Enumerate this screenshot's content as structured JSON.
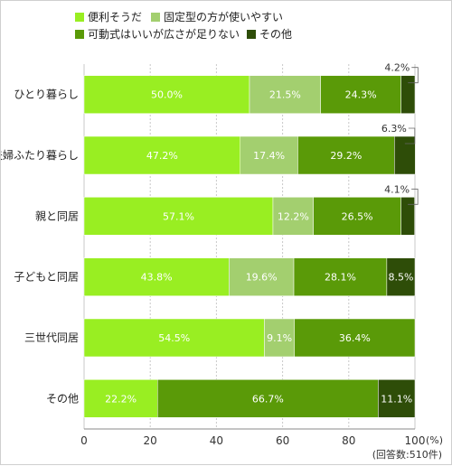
{
  "chart_data": {
    "type": "bar",
    "orientation": "horizontal",
    "stacked": true,
    "categories": [
      "ひとり暮らし",
      "夫婦ふたり暮らし",
      "親と同居",
      "子どもと同居",
      "三世代同居",
      "その他"
    ],
    "series": [
      {
        "name": "便利そうだ",
        "color": "#99ee22",
        "values": [
          50.0,
          47.2,
          57.1,
          43.8,
          54.5,
          22.2
        ],
        "labels": [
          "50.0%",
          "47.2%",
          "57.1%",
          "43.8%",
          "54.5%",
          "22.2%"
        ]
      },
      {
        "name": "固定型の方が使いやすい",
        "color": "#a3cf6f",
        "values": [
          21.5,
          17.4,
          12.2,
          19.6,
          9.1,
          0
        ],
        "labels": [
          "21.5%",
          "17.4%",
          "12.2%",
          "19.6%",
          "9.1%",
          ""
        ]
      },
      {
        "name": "可動式はいいが広さが足りない",
        "color": "#5a9a08",
        "values": [
          24.3,
          29.2,
          26.5,
          28.1,
          36.4,
          66.7
        ],
        "labels": [
          "24.3%",
          "29.2%",
          "26.5%",
          "28.1%",
          "36.4%",
          "66.7%"
        ]
      },
      {
        "name": "その他",
        "color": "#2e4d08",
        "values": [
          4.2,
          6.3,
          4.1,
          8.5,
          0,
          11.1
        ],
        "labels": [
          "4.2%",
          "6.3%",
          "4.1%",
          "8.5%",
          "",
          "11.1%"
        ]
      }
    ],
    "xlim": [
      0,
      100
    ],
    "xticks": [
      "0",
      "20",
      "40",
      "60",
      "80",
      "100"
    ],
    "x_unit": "(%)",
    "note": "(回答数:510件)",
    "legend": "top",
    "grid": true
  }
}
